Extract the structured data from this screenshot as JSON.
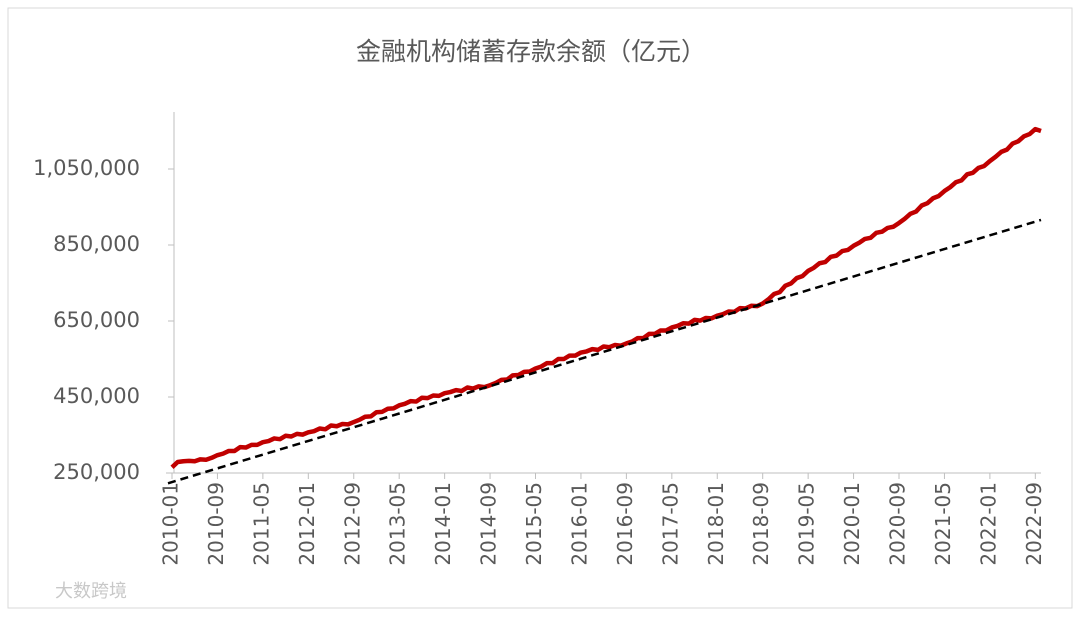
{
  "chart_data": {
    "type": "line",
    "title": "金融机构储蓄存款余额（亿元）",
    "watermark": "大数跨境",
    "categories": [
      "2010-01",
      null,
      null,
      null,
      null,
      null,
      null,
      null,
      "2010-09",
      null,
      null,
      null,
      null,
      null,
      null,
      null,
      "2011-05",
      null,
      null,
      null,
      null,
      null,
      null,
      null,
      "2012-01",
      null,
      null,
      null,
      null,
      null,
      null,
      null,
      "2012-09",
      null,
      null,
      null,
      null,
      null,
      null,
      null,
      "2013-05",
      null,
      null,
      null,
      null,
      null,
      null,
      null,
      "2014-01",
      null,
      null,
      null,
      null,
      null,
      null,
      null,
      "2014-09",
      null,
      null,
      null,
      null,
      null,
      null,
      null,
      "2015-05",
      null,
      null,
      null,
      null,
      null,
      null,
      null,
      "2016-01",
      null,
      null,
      null,
      null,
      null,
      null,
      null,
      "2016-09",
      null,
      null,
      null,
      null,
      null,
      null,
      null,
      "2017-05",
      null,
      null,
      null,
      null,
      null,
      null,
      null,
      "2018-01",
      null,
      null,
      null,
      null,
      null,
      null,
      null,
      "2018-09",
      null,
      null,
      null,
      null,
      null,
      null,
      null,
      "2019-05",
      null,
      null,
      null,
      null,
      null,
      null,
      null,
      "2020-01",
      null,
      null,
      null,
      null,
      null,
      null,
      null,
      "2020-09",
      null,
      null,
      null,
      null,
      null,
      null,
      null,
      "2021-05",
      null,
      null,
      null,
      null,
      null,
      null,
      null,
      "2022-01",
      null,
      null,
      null,
      null,
      null,
      null,
      null,
      "2022-09",
      null
    ],
    "series": [
      {
        "color": "#c00000",
        "values": [
          265000,
          279000,
          281000,
          282000,
          281000,
          286000,
          285000,
          290000,
          297000,
          301000,
          308000,
          308000,
          318000,
          317000,
          324000,
          324000,
          331000,
          334000,
          341000,
          339000,
          348000,
          346000,
          353000,
          351000,
          357000,
          360000,
          367000,
          365000,
          375000,
          373000,
          379000,
          378000,
          384000,
          390000,
          398000,
          399000,
          410000,
          411000,
          419000,
          420000,
          428000,
          432000,
          439000,
          438000,
          448000,
          447000,
          454000,
          453000,
          460000,
          463000,
          468000,
          466000,
          475000,
          472000,
          478000,
          476000,
          481000,
          487000,
          495000,
          496000,
          507000,
          508000,
          516000,
          517000,
          525000,
          530000,
          539000,
          539000,
          550000,
          550000,
          559000,
          559000,
          567000,
          570000,
          576000,
          574000,
          583000,
          581000,
          587000,
          585000,
          591000,
          596000,
          605000,
          605000,
          616000,
          616000,
          625000,
          625000,
          633000,
          637000,
          644000,
          643000,
          653000,
          651000,
          658000,
          657000,
          664000,
          668000,
          675000,
          674000,
          684000,
          683000,
          690000,
          689000,
          696000,
          707000,
          721000,
          726000,
          743000,
          749000,
          763000,
          768000,
          782000,
          790000,
          802000,
          805000,
          819000,
          822000,
          834000,
          837000,
          848000,
          856000,
          866000,
          869000,
          882000,
          885000,
          895000,
          898000,
          908000,
          919000,
          932000,
          938000,
          954000,
          960000,
          973000,
          979000,
          992000,
          1002000,
          1015000,
          1020000,
          1036000,
          1040000,
          1053000,
          1058000,
          1071000,
          1082000,
          1095000,
          1101000,
          1117000,
          1123000,
          1136000,
          1142000,
          1155000,
          1150000
        ]
      }
    ],
    "trendline": {
      "color": "#000000",
      "values": [
        223000,
        916000
      ]
    },
    "ylim": [
      250000,
      1200000
    ],
    "yticks": [
      {
        "value": 250000,
        "label": "250,000"
      },
      {
        "value": 450000,
        "label": "450,000"
      },
      {
        "value": 650000,
        "label": "650,000"
      },
      {
        "value": 850000,
        "label": "850,000"
      },
      {
        "value": 1050000,
        "label": "1,050,000"
      }
    ]
  }
}
